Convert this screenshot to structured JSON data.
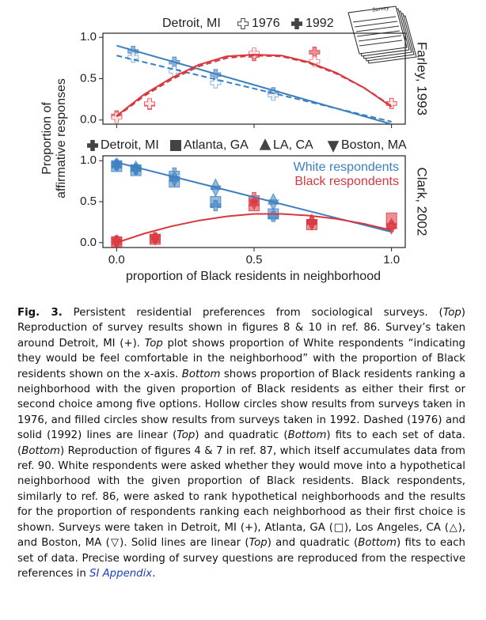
{
  "figure": {
    "ylabel": [
      "Proportion of",
      "affirmative responses"
    ],
    "xlabel": "proportion of Black residents in neighborhood",
    "icon_label": "Survey"
  },
  "chart_data": [
    {
      "type": "scatter",
      "legend_title": "Detroit, MI",
      "legend": [
        {
          "name": "1976",
          "style": "hollow"
        },
        {
          "name": "1992",
          "style": "filled"
        }
      ],
      "side_label": "Farley, 1993",
      "xlim": [
        -0.05,
        1.05
      ],
      "ylim": [
        -0.05,
        1.05
      ],
      "xticks": [
        {
          "value": 0,
          "label": "0.0"
        },
        {
          "value": 0.5,
          "label": "0.5"
        },
        {
          "value": 1,
          "label": "1.0"
        }
      ],
      "yticks": [
        {
          "value": 0,
          "label": "0.0"
        },
        {
          "value": 0.5,
          "label": "0.5"
        },
        {
          "value": 1,
          "label": "1.0"
        }
      ],
      "show_xtick_labels": false,
      "series": [
        {
          "color": "#3b7fc0",
          "style": "filled",
          "marker": "plus",
          "x": [
            0.06,
            0.21,
            0.36,
            0.57
          ],
          "values": [
            0.83,
            0.7,
            0.55,
            0.33
          ]
        },
        {
          "color": "#3b7fc0",
          "style": "hollow",
          "marker": "plus",
          "x": [
            0.06,
            0.21,
            0.36,
            0.57
          ],
          "values": [
            0.76,
            0.59,
            0.45,
            0.3
          ]
        },
        {
          "color": "#d9363e",
          "style": "filled",
          "marker": "plus",
          "x": [
            0.0,
            0.12,
            0.5,
            0.72,
            1.0
          ],
          "values": [
            0.05,
            0.19,
            0.78,
            0.82,
            0.2
          ]
        },
        {
          "color": "#d9363e",
          "style": "hollow",
          "marker": "plus",
          "x": [
            0.0,
            0.12,
            0.5,
            0.72,
            1.0
          ],
          "values": [
            0.03,
            0.2,
            0.81,
            0.71,
            0.2
          ]
        }
      ],
      "lines": [
        {
          "color": "#3b7fc0",
          "dashed": false,
          "x": [
            0,
            1
          ],
          "values": [
            0.9,
            -0.05
          ]
        },
        {
          "color": "#3b7fc0",
          "dashed": true,
          "x": [
            0,
            1
          ],
          "values": [
            0.78,
            -0.02
          ]
        },
        {
          "color": "#d9363e",
          "dashed": false,
          "x": [
            0,
            0.1,
            0.2,
            0.3,
            0.4,
            0.5,
            0.6,
            0.7,
            0.8,
            0.9,
            1.0
          ],
          "values": [
            0.05,
            0.31,
            0.51,
            0.67,
            0.77,
            0.79,
            0.78,
            0.7,
            0.57,
            0.39,
            0.16
          ]
        },
        {
          "color": "#d9363e",
          "dashed": true,
          "x": [
            0,
            0.1,
            0.2,
            0.3,
            0.4,
            0.5,
            0.6,
            0.7,
            0.8,
            0.9,
            1.0
          ],
          "values": [
            0.04,
            0.29,
            0.49,
            0.65,
            0.75,
            0.78,
            0.77,
            0.69,
            0.56,
            0.39,
            0.17
          ]
        }
      ]
    },
    {
      "type": "scatter",
      "legend": [
        {
          "name": "Detroit, MI",
          "marker": "plus"
        },
        {
          "name": "Atlanta, GA",
          "marker": "square"
        },
        {
          "name": "LA, CA",
          "marker": "triangle"
        },
        {
          "name": "Boston, MA",
          "marker": "down-triangle"
        }
      ],
      "side_label": "Clark, 2002",
      "xlim": [
        -0.05,
        1.05
      ],
      "ylim": [
        -0.06,
        1.06
      ],
      "xticks": [
        {
          "value": 0,
          "label": "0.0"
        },
        {
          "value": 0.5,
          "label": "0.5"
        },
        {
          "value": 1,
          "label": "1.0"
        }
      ],
      "yticks": [
        {
          "value": 0,
          "label": "0.0"
        },
        {
          "value": 0.5,
          "label": "0.5"
        },
        {
          "value": 1,
          "label": "1.0"
        }
      ],
      "show_xtick_labels": true,
      "series": [
        {
          "name": "White respondents",
          "color": "#3b7fc0",
          "groups": [
            {
              "marker": "plus",
              "x": [
                0,
                0.07,
                0.21,
                0.36,
                0.57
              ],
              "values": [
                0.95,
                0.9,
                0.85,
                0.45,
                0.32
              ]
            },
            {
              "marker": "square",
              "x": [
                0,
                0.07,
                0.21,
                0.36,
                0.57
              ],
              "values": [
                0.93,
                0.88,
                0.74,
                0.5,
                0.35
              ]
            },
            {
              "marker": "triangle",
              "x": [
                0,
                0.07,
                0.21,
                0.36,
                0.57
              ],
              "values": [
                0.96,
                0.92,
                0.8,
                0.7,
                0.52
              ]
            },
            {
              "marker": "down-triangle",
              "x": [
                0,
                0.07,
                0.21,
                0.36,
                0.57
              ],
              "values": [
                0.95,
                0.9,
                0.76,
                0.64,
                0.47
              ]
            }
          ]
        },
        {
          "name": "Black respondents",
          "color": "#d9363e",
          "groups": [
            {
              "marker": "plus",
              "x": [
                0,
                0.14,
                0.5,
                0.71,
                1.0
              ],
              "values": [
                0.02,
                0.06,
                0.55,
                0.25,
                0.2
              ]
            },
            {
              "marker": "square",
              "x": [
                0,
                0.14,
                0.5,
                0.71,
                1.0
              ],
              "values": [
                0.01,
                0.04,
                0.45,
                0.22,
                0.3
              ]
            },
            {
              "marker": "triangle",
              "x": [
                0,
                0.14,
                0.5,
                0.71,
                1.0
              ],
              "values": [
                0.02,
                0.05,
                0.5,
                0.27,
                0.22
              ]
            },
            {
              "marker": "down-triangle",
              "x": [
                0,
                0.14,
                0.5,
                0.71,
                1.0
              ],
              "values": [
                0.01,
                0.05,
                0.48,
                0.23,
                0.18
              ]
            }
          ]
        }
      ],
      "lines": [
        {
          "color": "#3b7fc0",
          "dashed": false,
          "x": [
            0,
            1
          ],
          "values": [
            0.98,
            0.13
          ]
        },
        {
          "color": "#d9363e",
          "dashed": false,
          "x": [
            0,
            0.1,
            0.2,
            0.3,
            0.4,
            0.5,
            0.6,
            0.7,
            0.8,
            0.9,
            1.0
          ],
          "values": [
            0.0,
            0.11,
            0.2,
            0.27,
            0.32,
            0.35,
            0.35,
            0.33,
            0.29,
            0.23,
            0.15
          ]
        }
      ]
    }
  ],
  "caption": {
    "label": "Fig. 3.",
    "runs": [
      {
        "text": "  Persistent residential preferences from sociological surveys. ("
      },
      {
        "text": "Top",
        "italic": true
      },
      {
        "text": ") Reproduction of survey results shown in figures 8 & 10 in ref. 86. Survey’s taken around Detroit, MI (+). "
      },
      {
        "text": "Top",
        "italic": true
      },
      {
        "text": " plot shows proportion of White respondents “indicating they would be feel comfortable in the neighborhood” with the proportion of Black residents shown on the x-axis. "
      },
      {
        "text": "Bottom",
        "italic": true
      },
      {
        "text": " shows proportion of Black residents ranking a neighborhood with the given proportion of Black residents as either their first or second choice among five options. Hollow circles show results from surveys taken in 1976, and filled circles show results from surveys taken in 1992. Dashed (1976) and solid (1992) lines are linear ("
      },
      {
        "text": "Top",
        "italic": true
      },
      {
        "text": ") and quadratic ("
      },
      {
        "text": "Bottom",
        "italic": true
      },
      {
        "text": ") fits to each set of data. ("
      },
      {
        "text": "Bottom",
        "italic": true
      },
      {
        "text": ") Reproduction of figures 4 & 7 in ref. 87, which itself accumulates data from ref. 90. White respondents were asked whether they would move into a hypothetical neighborhood with the given proportion of Black residents. Black respondents, similarly to ref. 86, were asked to rank hypothetical neighborhoods and the results for the proportion of respondents ranking each neighborhood as their first choice is shown. Surveys were taken in Detroit, MI (+), Atlanta, GA (□), Los Angeles, CA (△), and Boston, MA (▽). Solid lines are linear ("
      },
      {
        "text": "Top",
        "italic": true
      },
      {
        "text": ") and quadratic ("
      },
      {
        "text": "Bottom",
        "italic": true
      },
      {
        "text": ") fits to each set of data. Precise wording of survey questions are reproduced from the respective references in "
      },
      {
        "text": "SI Appendix",
        "italic": true,
        "link": true
      },
      {
        "text": "."
      }
    ]
  }
}
